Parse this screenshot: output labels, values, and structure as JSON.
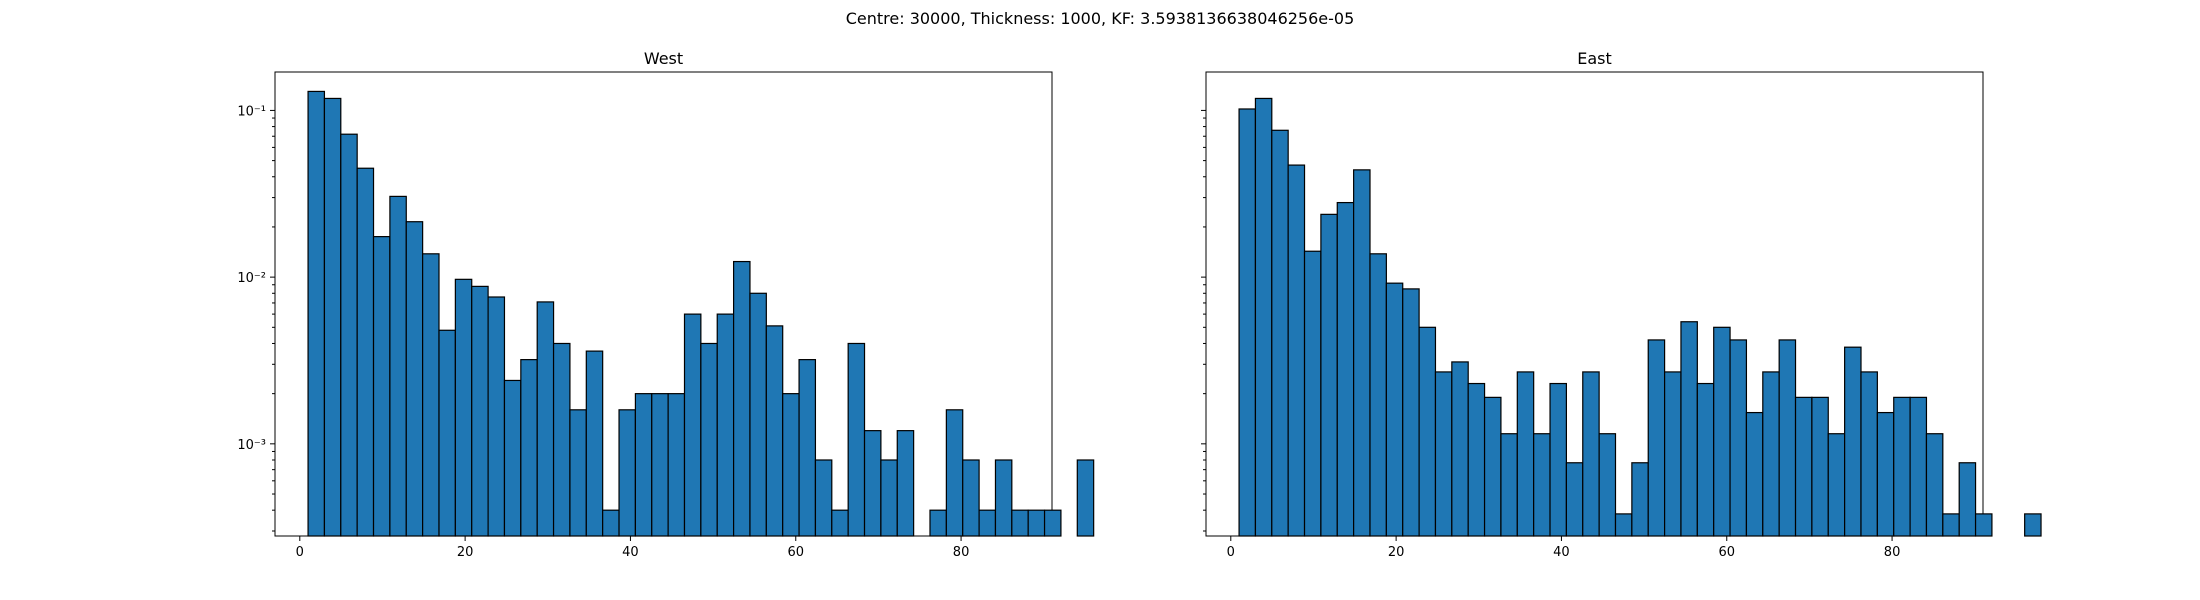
{
  "figure": {
    "suptitle": "Centre: 30000, Thickness: 1000, KF: 3.5938136638046256e-05"
  },
  "chart_data": [
    {
      "type": "bar",
      "title": "West",
      "xlabel": "",
      "ylabel": "",
      "yscale": "log",
      "xlim": [
        -3,
        91
      ],
      "ylim": [
        0.00028,
        0.17
      ],
      "xticks": [
        0,
        20,
        40,
        60,
        80
      ],
      "yticks": [
        0.001,
        0.01,
        0.1
      ],
      "ytick_labels": [
        "10⁻³",
        "10⁻²",
        "10⁻¹"
      ],
      "bin_width": 1.98,
      "bin_start": 1,
      "values": [
        0.13,
        0.118,
        0.072,
        0.045,
        0.0175,
        0.0305,
        0.0215,
        0.0138,
        0.0048,
        0.0097,
        0.0088,
        0.0076,
        0.0024,
        0.0032,
        0.0071,
        0.004,
        0.0016,
        0.0036,
        0.0004,
        0.0016,
        0.002,
        0.002,
        0.002,
        0.006,
        0.004,
        0.006,
        0.0124,
        0.008,
        0.0051,
        0.002,
        0.0032,
        0.0008,
        0.0004,
        0.004,
        0.0012,
        0.0008,
        0.0012,
        0,
        0.0004,
        0.0016,
        0.0008,
        0.0004,
        0.0008,
        0.0004,
        0.0004,
        0.0004,
        0,
        0.0008
      ]
    },
    {
      "type": "bar",
      "title": "East",
      "xlabel": "",
      "ylabel": "",
      "yscale": "log",
      "xlim": [
        -3,
        91
      ],
      "ylim": [
        0.00028,
        0.17
      ],
      "xticks": [
        0,
        20,
        40,
        60,
        80
      ],
      "bin_width": 1.98,
      "bin_start": 1,
      "values": [
        0.102,
        0.118,
        0.076,
        0.047,
        0.0143,
        0.0238,
        0.028,
        0.044,
        0.0138,
        0.0092,
        0.0085,
        0.005,
        0.0027,
        0.0031,
        0.0023,
        0.0019,
        0.00115,
        0.0027,
        0.00115,
        0.0023,
        0.00077,
        0.0027,
        0.00115,
        0.00038,
        0.00077,
        0.0042,
        0.0027,
        0.0054,
        0.0023,
        0.005,
        0.0042,
        0.00154,
        0.0027,
        0.0042,
        0.0019,
        0.0019,
        0.00115,
        0.0038,
        0.0027,
        0.00154,
        0.0019,
        0.0019,
        0.00115,
        0.00038,
        0.00077,
        0.00038,
        0,
        0,
        0.00038
      ]
    }
  ]
}
